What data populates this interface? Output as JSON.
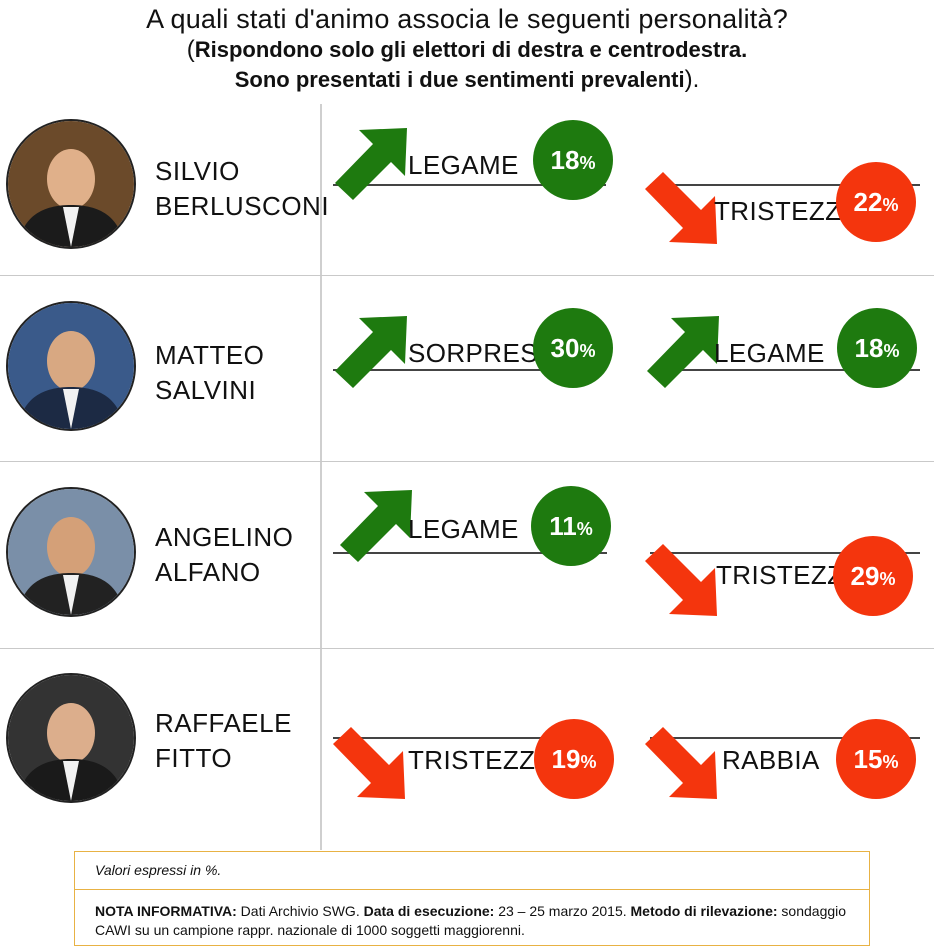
{
  "header": {
    "question": "A quali stati d'animo associa le seguenti personalità?",
    "subtitle_line1": "Rispondono solo gli elettori di destra e centrodestra.",
    "subtitle_line2": "Sono presentati i due sentimenti prevalenti",
    "paren_open": "(",
    "paren_close": ")."
  },
  "colors": {
    "positive": "#1e7a0f",
    "negative": "#f4350d"
  },
  "chart_data": {
    "type": "table",
    "unit": "%",
    "rows": [
      {
        "first_name": "SILVIO",
        "last_name": "BERLUSCONI",
        "sentiments": [
          {
            "label": "LEGAME",
            "value": 18,
            "direction": "up",
            "color": "green"
          },
          {
            "label": "TRISTEZZA",
            "value": 22,
            "direction": "down",
            "color": "red"
          }
        ]
      },
      {
        "first_name": "MATTEO",
        "last_name": "SALVINI",
        "sentiments": [
          {
            "label": "SORPRESA",
            "value": 30,
            "direction": "up",
            "color": "green"
          },
          {
            "label": "LEGAME",
            "value": 18,
            "direction": "up",
            "color": "green"
          }
        ]
      },
      {
        "first_name": "ANGELINO",
        "last_name": "ALFANO",
        "sentiments": [
          {
            "label": "LEGAME",
            "value": 11,
            "direction": "up",
            "color": "green"
          },
          {
            "label": "TRISTEZZA",
            "value": 29,
            "direction": "down",
            "color": "red"
          }
        ]
      },
      {
        "first_name": "RAFFAELE",
        "last_name": "FITTO",
        "sentiments": [
          {
            "label": "TRISTEZZA",
            "value": 19,
            "direction": "down",
            "color": "red"
          },
          {
            "label": "RABBIA",
            "value": 15,
            "direction": "down",
            "color": "red"
          }
        ]
      }
    ]
  },
  "note": {
    "values_line": "Valori espressi in %.",
    "nota_label": "NOTA INFORMATIVA:",
    "nota_text": " Dati Archivio SWG. ",
    "data_label": "Data di esecuzione:",
    "data_text": " 23 – 25 marzo 2015. ",
    "metodo_label": "Metodo di rilevazione:",
    "metodo_text": " sondaggio CAWI su un campione rappr. nazionale di 1000 soggetti maggiorenni."
  }
}
